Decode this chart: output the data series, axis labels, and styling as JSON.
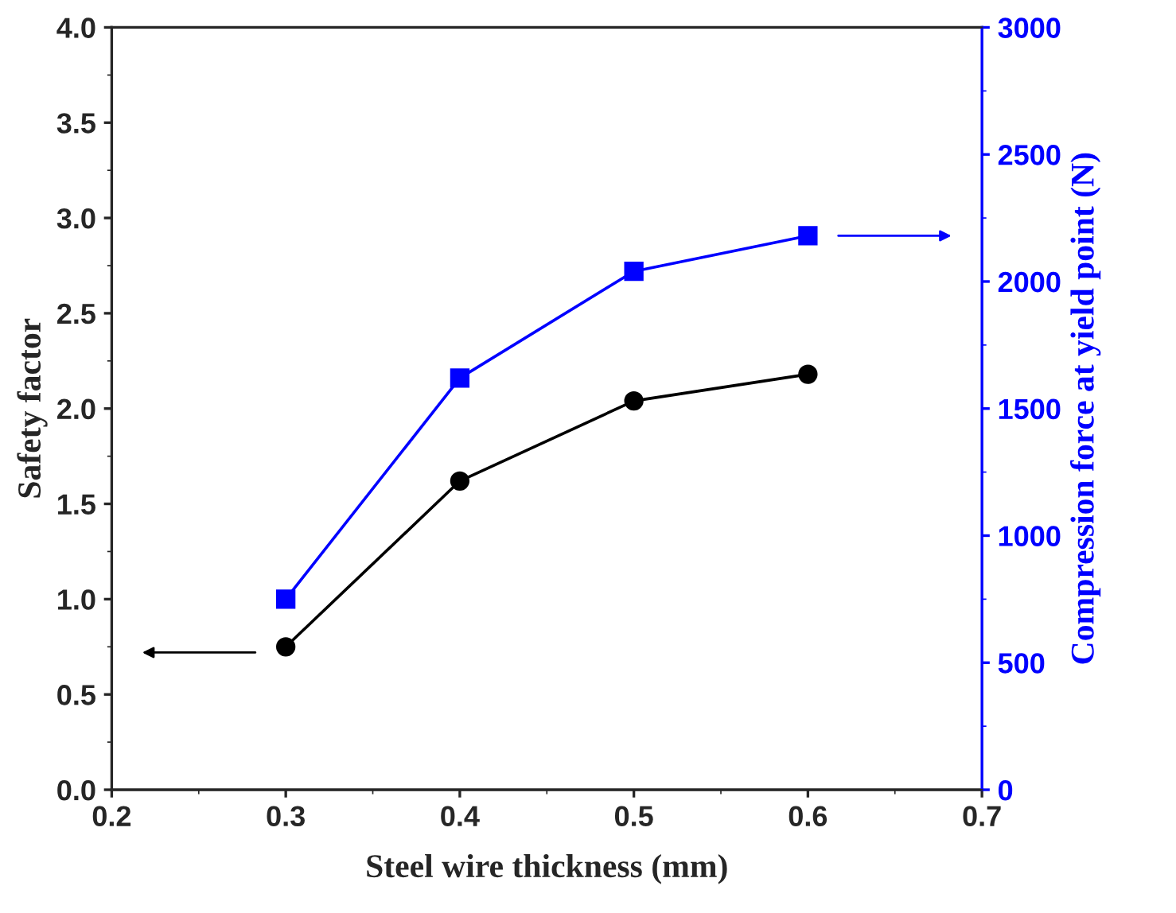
{
  "chart_data": {
    "type": "line",
    "xlabel": "Steel wire thickness (mm)",
    "ylabel": "Safety factor",
    "y2label": "Compression force at yield point (N)",
    "x": [
      0.3,
      0.4,
      0.5,
      0.6
    ],
    "series": [
      {
        "color": "#000000",
        "values": [
          0.75,
          1.62,
          2.04,
          2.18
        ],
        "marker": "circle"
      },
      {
        "color": "#0000ff",
        "values": [
          750,
          1620,
          2040,
          2180
        ],
        "marker": "square",
        "axis": "y2"
      }
    ],
    "xlim": [
      0.2,
      0.7
    ],
    "xticks": [
      0.2,
      0.3,
      0.4,
      0.5,
      0.6,
      0.7
    ],
    "ylim": [
      0,
      4
    ],
    "yticks": [
      {
        "value": 0,
        "label": "0.0"
      },
      0.5,
      {
        "value": 1,
        "label": "1.0"
      },
      1.5,
      {
        "value": 2,
        "label": "2.0"
      },
      2.5,
      {
        "value": 3,
        "label": "3.0"
      },
      3.5,
      {
        "value": 4,
        "label": "4.0"
      }
    ],
    "y2lim": [
      0,
      3000
    ],
    "y2ticks": [
      0,
      500,
      1000,
      1500,
      2000,
      2500,
      3000
    ],
    "grid": false,
    "line_style": "solid"
  }
}
